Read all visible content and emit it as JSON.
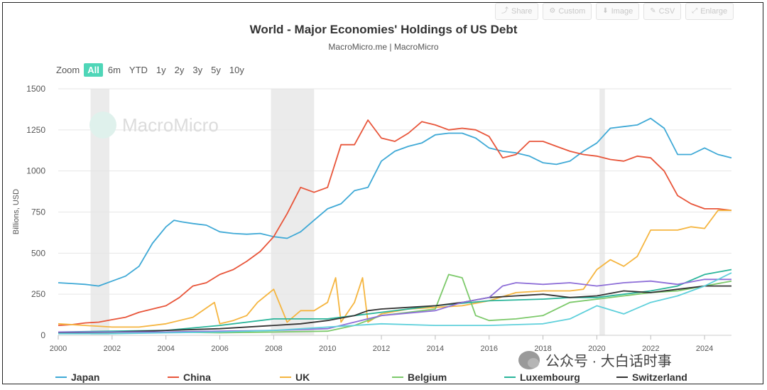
{
  "toolbar": [
    {
      "icon": "share-icon",
      "glyph": "⤴",
      "label": "Share"
    },
    {
      "icon": "gear-icon",
      "glyph": "⚙",
      "label": "Custom"
    },
    {
      "icon": "download-icon",
      "glyph": "⬇",
      "label": "Image"
    },
    {
      "icon": "pencil-icon",
      "glyph": "✎",
      "label": "CSV"
    },
    {
      "icon": "expand-icon",
      "glyph": "⤢",
      "label": "Enlarge"
    }
  ],
  "zoom": {
    "label": "Zoom",
    "options": [
      "All",
      "6m",
      "YTD",
      "1y",
      "2y",
      "3y",
      "5y",
      "10y"
    ],
    "selected": "All"
  },
  "brand": {
    "watermark": "MacroMicro"
  },
  "wechat": {
    "text": "公众号 · 大白话时事"
  },
  "colors": {
    "Japan": "#3fa9d6",
    "China": "#e8553a",
    "UK": "#f5b53f",
    "Belgium": "#7cc96a",
    "Luxembourg": "#2ab59a",
    "Switzerland": "#333333",
    "Purple": "#8e6fd8",
    "Cyan": "#5fd0db",
    "accent": "#4fd6b8"
  },
  "chart_data": {
    "type": "line",
    "title": "World - Major Economies' Holdings of US Debt",
    "subtitle": "MacroMicro.me | MacroMicro",
    "xlabel": "",
    "ylabel": "Billions, USD",
    "xlim": [
      2000,
      2025
    ],
    "ylim": [
      0,
      1500
    ],
    "xticks": [
      2000,
      2002,
      2004,
      2006,
      2008,
      2010,
      2012,
      2014,
      2016,
      2018,
      2020,
      2022,
      2024
    ],
    "yticks": [
      0,
      250,
      500,
      750,
      1000,
      1250,
      1500
    ],
    "recessions": [
      [
        2001.2,
        2001.9
      ],
      [
        2007.9,
        2009.5
      ],
      [
        2020.1,
        2020.3
      ]
    ],
    "series": [
      {
        "name": "Japan",
        "legend": true,
        "x": [
          2000,
          2000.5,
          2001,
          2001.5,
          2002,
          2002.5,
          2003,
          2003.5,
          2004,
          2004.3,
          2004.6,
          2005,
          2005.5,
          2006,
          2006.5,
          2007,
          2007.5,
          2008,
          2008.5,
          2009,
          2009.5,
          2010,
          2010.5,
          2011,
          2011.5,
          2012,
          2012.5,
          2013,
          2013.5,
          2014,
          2014.5,
          2015,
          2015.5,
          2016,
          2016.5,
          2017,
          2017.5,
          2018,
          2018.5,
          2019,
          2019.5,
          2020,
          2020.5,
          2021,
          2021.5,
          2022,
          2022.5,
          2023,
          2023.5,
          2024,
          2024.5,
          2025
        ],
        "y": [
          320,
          315,
          310,
          300,
          330,
          360,
          420,
          560,
          660,
          700,
          690,
          680,
          670,
          630,
          620,
          615,
          620,
          600,
          590,
          630,
          700,
          770,
          800,
          880,
          900,
          1060,
          1120,
          1150,
          1170,
          1220,
          1230,
          1230,
          1200,
          1140,
          1120,
          1110,
          1090,
          1050,
          1040,
          1060,
          1120,
          1170,
          1260,
          1270,
          1280,
          1320,
          1260,
          1100,
          1100,
          1140,
          1100,
          1080
        ]
      },
      {
        "name": "China",
        "legend": true,
        "x": [
          2000,
          2000.5,
          2001,
          2001.5,
          2002,
          2002.5,
          2003,
          2003.5,
          2004,
          2004.5,
          2005,
          2005.5,
          2006,
          2006.5,
          2007,
          2007.5,
          2008,
          2008.5,
          2009,
          2009.5,
          2010,
          2010.5,
          2011,
          2011.5,
          2012,
          2012.5,
          2013,
          2013.5,
          2014,
          2014.5,
          2015,
          2015.5,
          2016,
          2016.5,
          2017,
          2017.5,
          2018,
          2018.5,
          2019,
          2019.5,
          2020,
          2020.5,
          2021,
          2021.5,
          2022,
          2022.5,
          2023,
          2023.5,
          2024,
          2024.5,
          2025
        ],
        "y": [
          60,
          65,
          75,
          80,
          95,
          110,
          140,
          160,
          180,
          230,
          300,
          320,
          370,
          400,
          450,
          510,
          600,
          740,
          900,
          870,
          900,
          1160,
          1160,
          1310,
          1200,
          1180,
          1230,
          1300,
          1280,
          1250,
          1260,
          1250,
          1210,
          1080,
          1100,
          1180,
          1180,
          1150,
          1120,
          1100,
          1090,
          1070,
          1060,
          1090,
          1080,
          1000,
          850,
          800,
          770,
          770,
          760
        ]
      },
      {
        "name": "UK",
        "legend": true,
        "x": [
          2000,
          2001,
          2002,
          2003,
          2004,
          2005,
          2005.8,
          2006,
          2006.5,
          2007,
          2007.4,
          2008,
          2008.5,
          2009,
          2009.5,
          2010,
          2010.3,
          2010.5,
          2011,
          2011.3,
          2011.5,
          2012,
          2013,
          2014,
          2015,
          2016,
          2017,
          2018,
          2019,
          2019.5,
          2020,
          2020.5,
          2021,
          2021.5,
          2022,
          2022.5,
          2023,
          2023.5,
          2024,
          2024.5,
          2025
        ],
        "y": [
          70,
          60,
          50,
          50,
          70,
          110,
          200,
          70,
          90,
          120,
          200,
          280,
          80,
          150,
          150,
          200,
          350,
          80,
          200,
          350,
          80,
          130,
          160,
          170,
          180,
          210,
          260,
          270,
          270,
          280,
          400,
          460,
          420,
          480,
          640,
          640,
          640,
          660,
          650,
          760,
          760
        ]
      },
      {
        "name": "Belgium",
        "legend": true,
        "x": [
          2000,
          2002,
          2004,
          2006,
          2008,
          2010,
          2011,
          2012,
          2013,
          2014,
          2014.5,
          2015,
          2015.5,
          2016,
          2017,
          2018,
          2019,
          2020,
          2021,
          2022,
          2023,
          2024,
          2025
        ],
        "y": [
          20,
          15,
          20,
          15,
          20,
          25,
          60,
          120,
          140,
          160,
          370,
          350,
          120,
          90,
          100,
          120,
          200,
          220,
          240,
          260,
          270,
          300,
          330
        ]
      },
      {
        "name": "Luxembourg",
        "legend": true,
        "x": [
          2000,
          2002,
          2004,
          2006,
          2008,
          2010,
          2012,
          2014,
          2016,
          2018,
          2019,
          2020,
          2021,
          2022,
          2023,
          2024,
          2025
        ],
        "y": [
          20,
          25,
          30,
          60,
          100,
          100,
          140,
          180,
          210,
          220,
          230,
          230,
          250,
          270,
          300,
          370,
          400
        ]
      },
      {
        "name": "Switzerland",
        "legend": true,
        "x": [
          2000,
          2002,
          2004,
          2006,
          2008,
          2009,
          2010,
          2011,
          2011.5,
          2012,
          2013,
          2014,
          2015,
          2016,
          2017,
          2018,
          2019,
          2020,
          2021,
          2022,
          2023,
          2024,
          2025
        ],
        "y": [
          15,
          20,
          30,
          40,
          60,
          70,
          90,
          120,
          150,
          160,
          170,
          180,
          200,
          230,
          240,
          250,
          230,
          240,
          270,
          260,
          280,
          300,
          300
        ]
      },
      {
        "name": "Purple",
        "legend": false,
        "x": [
          2000,
          2002,
          2004,
          2006,
          2008,
          2010,
          2012,
          2014,
          2015,
          2016,
          2016.5,
          2017,
          2018,
          2019,
          2020,
          2021,
          2022,
          2023,
          2024,
          2025
        ],
        "y": [
          20,
          20,
          20,
          25,
          30,
          40,
          120,
          150,
          200,
          230,
          300,
          320,
          310,
          320,
          300,
          320,
          330,
          310,
          340,
          340
        ]
      },
      {
        "name": "Cyan",
        "legend": false,
        "x": [
          2000,
          2002,
          2004,
          2006,
          2008,
          2010,
          2012,
          2014,
          2016,
          2018,
          2019,
          2020,
          2021,
          2022,
          2023,
          2024,
          2025
        ],
        "y": [
          10,
          10,
          15,
          20,
          30,
          50,
          70,
          60,
          60,
          70,
          100,
          180,
          130,
          200,
          240,
          300,
          380
        ]
      }
    ]
  }
}
